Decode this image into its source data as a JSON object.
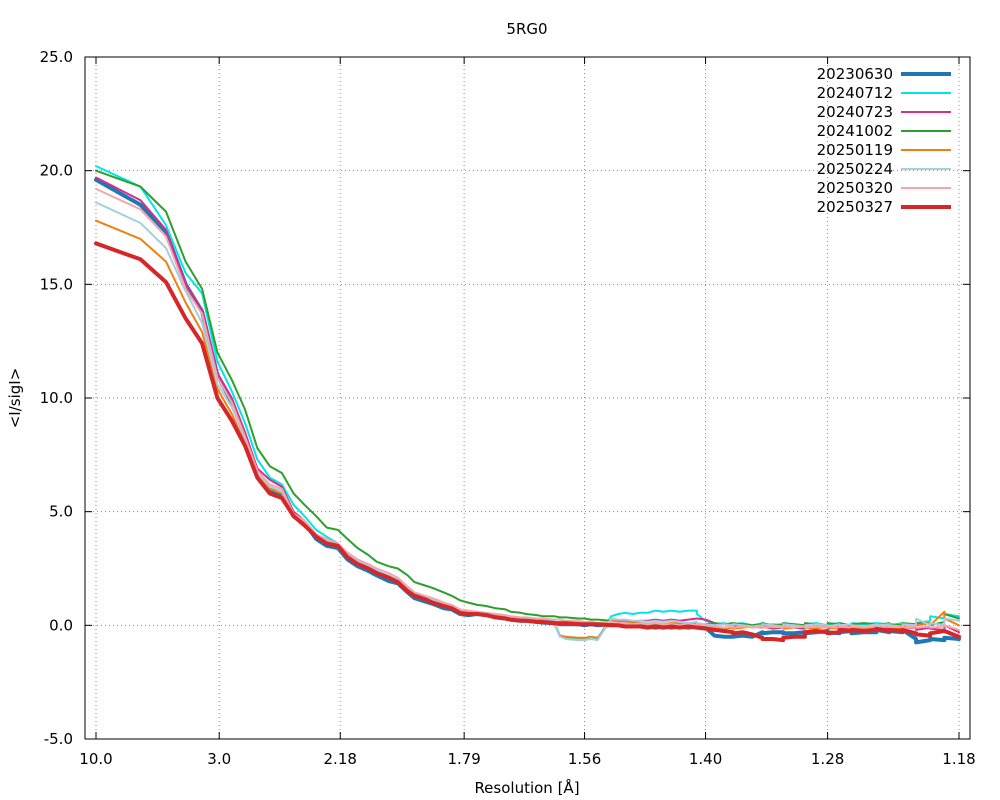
{
  "chart_data": {
    "type": "line",
    "title": "5RG0",
    "xlabel": "Resolution [Å]",
    "ylabel": "<I/sigI>",
    "ylim": [
      -5.0,
      25.0
    ],
    "yticks": [
      "-5.0",
      "0.0",
      "5.0",
      "10.0",
      "15.0",
      "20.0",
      "25.0"
    ],
    "xticks": [
      "10.0",
      "3.0",
      "2.18",
      "1.79",
      "1.56",
      "1.40",
      "1.28",
      "1.18"
    ],
    "grid": true,
    "legend_position": "top-right",
    "x": [
      10.0,
      4.64,
      3.85,
      3.46,
      3.21,
      3.02,
      2.87,
      2.75,
      2.65,
      2.56,
      2.48,
      2.41,
      2.35,
      2.29,
      2.24,
      2.19,
      2.15,
      2.11,
      2.07,
      2.04,
      2.0,
      1.97,
      1.94,
      1.92,
      1.89,
      1.87,
      1.84,
      1.82,
      1.8,
      1.78,
      1.76,
      1.74,
      1.72,
      1.7,
      1.69,
      1.67,
      1.66,
      1.64,
      1.63,
      1.61,
      1.6,
      1.59,
      1.57,
      1.56,
      1.55,
      1.54,
      1.52,
      1.51,
      1.5,
      1.49,
      1.48,
      1.47,
      1.46,
      1.45,
      1.44,
      1.43,
      1.42,
      1.41,
      1.41,
      1.4,
      1.39,
      1.38,
      1.37,
      1.37,
      1.36,
      1.35,
      1.34,
      1.34,
      1.33,
      1.32,
      1.32,
      1.31,
      1.3,
      1.3,
      1.29,
      1.28,
      1.28,
      1.27,
      1.27,
      1.26,
      1.26,
      1.25,
      1.24,
      1.24,
      1.23,
      1.23,
      1.22,
      1.22,
      1.21,
      1.21,
      1.2,
      1.2,
      1.19,
      1.19,
      1.18
    ],
    "series": [
      {
        "name": "20230630",
        "color": "#1f77b4",
        "width": 4,
        "values": [
          19.6,
          18.5,
          17.3,
          15.0,
          13.8,
          11.0,
          9.8,
          8.3,
          6.7,
          6.0,
          5.7,
          4.8,
          4.5,
          3.8,
          3.5,
          3.4,
          2.9,
          2.6,
          2.4,
          2.2,
          1.95,
          1.85,
          1.45,
          1.2,
          1.05,
          0.95,
          0.75,
          0.7,
          0.5,
          0.45,
          0.5,
          0.45,
          0.35,
          0.3,
          0.25,
          0.2,
          0.2,
          0.15,
          0.12,
          0.1,
          0.05,
          0.05,
          0.05,
          0.0,
          0.05,
          0.0,
          0.05,
          0.0,
          -0.05,
          0.0,
          0.0,
          -0.05,
          -0.1,
          -0.05,
          -0.1,
          -0.05,
          -0.1,
          -0.05,
          0.0,
          -0.1,
          -0.45,
          -0.5,
          -0.5,
          -0.5,
          -0.45,
          -0.5,
          -0.3,
          -0.35,
          -0.3,
          -0.3,
          -0.35,
          -0.35,
          -0.3,
          -0.35,
          -0.3,
          -0.25,
          -0.3,
          -0.35,
          -0.3,
          -0.25,
          -0.35,
          -0.3,
          -0.3,
          -0.2,
          -0.3,
          -0.25,
          -0.3,
          -0.2,
          -0.6,
          -0.75,
          -0.65,
          -0.6,
          -0.65,
          -0.55,
          -0.6
        ]
      },
      {
        "name": "20240712",
        "color": "#00e5e5",
        "width": 2,
        "values": [
          20.2,
          19.3,
          17.6,
          15.5,
          14.6,
          11.6,
          10.3,
          8.9,
          7.3,
          6.5,
          6.2,
          5.3,
          4.8,
          4.2,
          3.9,
          3.6,
          3.1,
          2.8,
          2.6,
          2.4,
          2.1,
          1.95,
          1.6,
          1.4,
          1.2,
          1.1,
          0.9,
          0.8,
          0.6,
          0.55,
          0.55,
          0.5,
          0.45,
          0.35,
          0.3,
          0.3,
          0.25,
          0.25,
          0.2,
          0.2,
          -0.45,
          -0.55,
          -0.6,
          -0.6,
          -0.6,
          -0.6,
          0.4,
          0.5,
          0.55,
          0.5,
          0.55,
          0.55,
          0.65,
          0.6,
          0.65,
          0.6,
          0.65,
          0.65,
          0.5,
          0.2,
          0.05,
          0.1,
          0.0,
          0.05,
          0.1,
          0.0,
          0.1,
          -0.05,
          0.05,
          0.0,
          0.1,
          0.05,
          0.0,
          0.05,
          0.1,
          0.0,
          0.05,
          0.1,
          0.05,
          0.0,
          0.1,
          0.05,
          0.1,
          0.1,
          0.05,
          0.0,
          0.1,
          0.05,
          0.0,
          0.1,
          0.2,
          0.4,
          0.3,
          0.5,
          0.4
        ]
      },
      {
        "name": "20240723",
        "color": "#d62f87",
        "width": 2,
        "values": [
          19.7,
          18.7,
          17.4,
          15.0,
          13.9,
          11.1,
          10.0,
          8.5,
          6.9,
          6.4,
          6.1,
          5.0,
          4.6,
          4.0,
          3.7,
          3.6,
          3.1,
          2.8,
          2.6,
          2.4,
          2.15,
          2.0,
          1.6,
          1.3,
          1.2,
          1.1,
          0.9,
          0.8,
          0.6,
          0.55,
          0.55,
          0.5,
          0.4,
          0.35,
          0.3,
          0.3,
          0.25,
          0.2,
          0.2,
          0.15,
          0.1,
          0.15,
          0.1,
          0.1,
          0.15,
          0.1,
          0.15,
          0.2,
          0.2,
          0.15,
          0.2,
          0.2,
          0.25,
          0.2,
          0.25,
          0.2,
          0.25,
          0.3,
          0.3,
          0.25,
          0.1,
          0.05,
          0.0,
          -0.05,
          0.0,
          -0.05,
          -0.1,
          -0.05,
          -0.15,
          -0.1,
          -0.05,
          -0.1,
          -0.15,
          -0.1,
          -0.05,
          -0.1,
          -0.15,
          -0.05,
          -0.1,
          -0.15,
          -0.1,
          -0.05,
          -0.15,
          -0.1,
          -0.1,
          -0.2,
          -0.15,
          -0.1,
          -0.1,
          -0.2,
          -0.1,
          -0.15,
          -0.2,
          0.0,
          -0.3
        ]
      },
      {
        "name": "20241002",
        "color": "#2ca02c",
        "width": 2,
        "values": [
          20.0,
          19.3,
          18.2,
          16.0,
          14.8,
          12.0,
          10.8,
          9.5,
          7.8,
          7.0,
          6.7,
          5.8,
          5.3,
          4.8,
          4.3,
          4.2,
          3.8,
          3.4,
          3.1,
          2.8,
          2.6,
          2.5,
          2.2,
          1.9,
          1.75,
          1.65,
          1.45,
          1.3,
          1.1,
          1.0,
          0.9,
          0.85,
          0.75,
          0.7,
          0.6,
          0.55,
          0.5,
          0.45,
          0.4,
          0.4,
          0.35,
          0.35,
          0.3,
          0.3,
          0.25,
          0.25,
          0.2,
          0.15,
          0.15,
          0.1,
          0.1,
          0.05,
          0.05,
          0.0,
          0.05,
          0.0,
          0.05,
          0.0,
          0.0,
          0.05,
          0.1,
          0.05,
          0.1,
          0.1,
          0.05,
          0.0,
          0.05,
          0.1,
          0.0,
          0.05,
          0.1,
          0.05,
          0.0,
          0.1,
          0.05,
          0.0,
          0.1,
          0.05,
          0.1,
          0.0,
          0.05,
          0.1,
          0.05,
          0.0,
          0.1,
          0.05,
          0.0,
          0.1,
          0.05,
          0.1,
          0.1,
          0.0,
          0.15,
          0.5,
          0.3
        ]
      },
      {
        "name": "20250119",
        "color": "#f07f0e",
        "width": 2,
        "values": [
          17.8,
          17.0,
          16.0,
          14.2,
          12.9,
          10.4,
          9.3,
          8.0,
          6.6,
          6.0,
          5.8,
          4.8,
          4.5,
          3.9,
          3.6,
          3.5,
          3.0,
          2.7,
          2.5,
          2.3,
          2.1,
          1.9,
          1.5,
          1.3,
          1.15,
          1.05,
          0.85,
          0.75,
          0.55,
          0.5,
          0.5,
          0.45,
          0.35,
          0.3,
          0.25,
          0.2,
          0.2,
          0.15,
          0.15,
          0.1,
          -0.45,
          -0.5,
          -0.55,
          -0.55,
          -0.5,
          -0.55,
          0.2,
          0.15,
          0.15,
          0.1,
          0.1,
          0.05,
          0.1,
          0.05,
          0.1,
          0.1,
          0.05,
          0.1,
          0.05,
          0.0,
          -0.1,
          -0.15,
          -0.1,
          -0.15,
          -0.1,
          -0.05,
          -0.1,
          -0.05,
          -0.1,
          -0.05,
          -0.15,
          -0.1,
          -0.05,
          -0.1,
          -0.15,
          -0.05,
          -0.1,
          -0.15,
          -0.1,
          -0.05,
          -0.1,
          -0.15,
          -0.05,
          -0.1,
          -0.05,
          -0.1,
          -0.15,
          -0.05,
          -0.1,
          0.0,
          0.1,
          0.0,
          0.6,
          0.3,
          0.0
        ]
      },
      {
        "name": "20250224",
        "color": "#a6cee3",
        "width": 2,
        "values": [
          18.6,
          17.7,
          16.6,
          14.7,
          13.3,
          10.6,
          9.6,
          8.2,
          6.7,
          6.1,
          5.9,
          4.9,
          4.6,
          4.0,
          3.7,
          3.6,
          3.1,
          2.8,
          2.6,
          2.4,
          2.2,
          2.0,
          1.6,
          1.35,
          1.2,
          1.1,
          0.9,
          0.8,
          0.6,
          0.55,
          0.55,
          0.5,
          0.4,
          0.35,
          0.3,
          0.25,
          0.25,
          0.2,
          0.2,
          0.15,
          -0.5,
          -0.6,
          -0.65,
          -0.65,
          -0.6,
          -0.65,
          0.3,
          0.25,
          0.25,
          0.2,
          0.2,
          0.15,
          0.2,
          0.15,
          0.2,
          0.15,
          0.1,
          0.15,
          0.1,
          0.05,
          0.0,
          0.05,
          0.0,
          0.05,
          0.0,
          -0.05,
          0.0,
          0.05,
          0.0,
          -0.05,
          0.05,
          0.0,
          -0.05,
          0.0,
          0.05,
          0.0,
          -0.05,
          0.05,
          0.0,
          0.05,
          0.0,
          -0.05,
          0.05,
          0.0,
          0.05,
          0.0,
          -0.05,
          0.05,
          0.0,
          0.3,
          0.0,
          0.1,
          0.0,
          0.3,
          0.2
        ]
      },
      {
        "name": "20250320",
        "color": "#f4a6ad",
        "width": 2,
        "values": [
          19.2,
          18.3,
          17.1,
          14.8,
          13.7,
          10.9,
          9.8,
          8.3,
          6.8,
          6.2,
          6.0,
          4.9,
          4.6,
          4.0,
          3.8,
          3.6,
          3.2,
          2.9,
          2.7,
          2.5,
          2.3,
          2.1,
          1.7,
          1.45,
          1.3,
          1.2,
          1.0,
          0.9,
          0.7,
          0.65,
          0.6,
          0.55,
          0.5,
          0.45,
          0.4,
          0.35,
          0.35,
          0.3,
          0.3,
          0.25,
          0.25,
          0.2,
          0.2,
          0.15,
          0.15,
          0.1,
          0.15,
          0.1,
          0.1,
          0.05,
          0.1,
          0.05,
          0.1,
          0.05,
          0.05,
          0.0,
          0.05,
          0.0,
          0.05,
          0.0,
          -0.05,
          -0.1,
          -0.05,
          -0.1,
          -0.05,
          -0.1,
          -0.05,
          -0.1,
          -0.05,
          -0.1,
          -0.05,
          -0.1,
          -0.05,
          -0.1,
          -0.05,
          -0.1,
          -0.05,
          -0.1,
          -0.05,
          -0.1,
          -0.05,
          -0.1,
          -0.05,
          -0.1,
          -0.05,
          -0.1,
          -0.05,
          -0.1,
          -0.05,
          -0.1,
          -0.05,
          -0.1,
          -0.05,
          0.0,
          -0.2
        ]
      },
      {
        "name": "20250327",
        "color": "#d62728",
        "width": 4,
        "values": [
          16.8,
          16.1,
          15.1,
          13.5,
          12.4,
          10.0,
          9.0,
          7.9,
          6.5,
          5.8,
          5.6,
          4.8,
          4.4,
          3.9,
          3.6,
          3.5,
          3.0,
          2.7,
          2.5,
          2.3,
          2.1,
          1.9,
          1.5,
          1.3,
          1.15,
          1.0,
          0.85,
          0.75,
          0.55,
          0.5,
          0.5,
          0.45,
          0.35,
          0.3,
          0.25,
          0.2,
          0.2,
          0.15,
          0.15,
          0.1,
          0.1,
          0.1,
          0.05,
          0.05,
          0.05,
          0.05,
          0.0,
          0.0,
          -0.05,
          -0.05,
          -0.05,
          -0.1,
          -0.05,
          -0.1,
          -0.05,
          -0.1,
          -0.05,
          -0.1,
          -0.1,
          -0.15,
          -0.2,
          -0.25,
          -0.3,
          -0.35,
          -0.3,
          -0.4,
          -0.55,
          -0.6,
          -0.6,
          -0.65,
          -0.55,
          -0.5,
          -0.5,
          -0.3,
          -0.25,
          -0.3,
          -0.35,
          -0.3,
          -0.2,
          -0.25,
          -0.2,
          -0.25,
          -0.2,
          -0.15,
          -0.25,
          -0.2,
          -0.25,
          -0.2,
          -0.35,
          -0.4,
          -0.45,
          -0.35,
          -0.25,
          -0.25,
          -0.5
        ]
      }
    ]
  }
}
